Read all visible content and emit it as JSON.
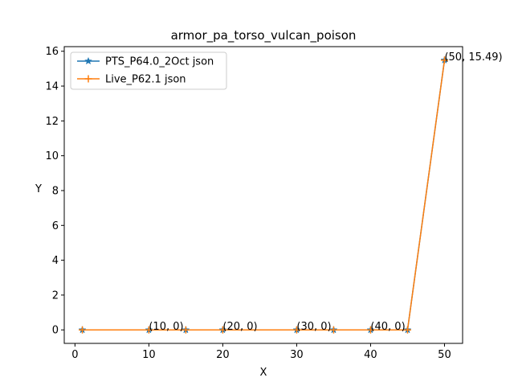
{
  "chart_data": {
    "type": "line",
    "title": "armor_pa_torso_vulcan_poison",
    "xlabel": "X",
    "ylabel": "Y",
    "xlim": [
      -1.45,
      52.45
    ],
    "ylim": [
      -0.7745,
      16.2645
    ],
    "xticks": [
      0,
      10,
      20,
      30,
      40,
      50
    ],
    "yticks": [
      0,
      2,
      4,
      6,
      8,
      10,
      12,
      14,
      16
    ],
    "grid": false,
    "legend": "top-left",
    "x": [
      1,
      10,
      15,
      20,
      30,
      35,
      40,
      45,
      50
    ],
    "series": [
      {
        "name": "PTS_P64.0_2Oct json",
        "marker": "star",
        "color": "#1f77b4",
        "values": [
          0,
          0,
          0,
          0,
          0,
          0,
          0,
          0,
          15.49
        ]
      },
      {
        "name": "Live_P62.1 json",
        "marker": "plus",
        "color": "#ff7f0e",
        "values": [
          0,
          0,
          0,
          0,
          0,
          0,
          0,
          0,
          15.49
        ]
      }
    ],
    "annotations": [
      {
        "x": 10,
        "y": 0,
        "text": "(10, 0)"
      },
      {
        "x": 20,
        "y": 0,
        "text": "(20, 0)"
      },
      {
        "x": 30,
        "y": 0,
        "text": "(30, 0)"
      },
      {
        "x": 40,
        "y": 0,
        "text": "(40, 0)"
      },
      {
        "x": 50,
        "y": 15.49,
        "text": "(50, 15.49)"
      }
    ]
  }
}
